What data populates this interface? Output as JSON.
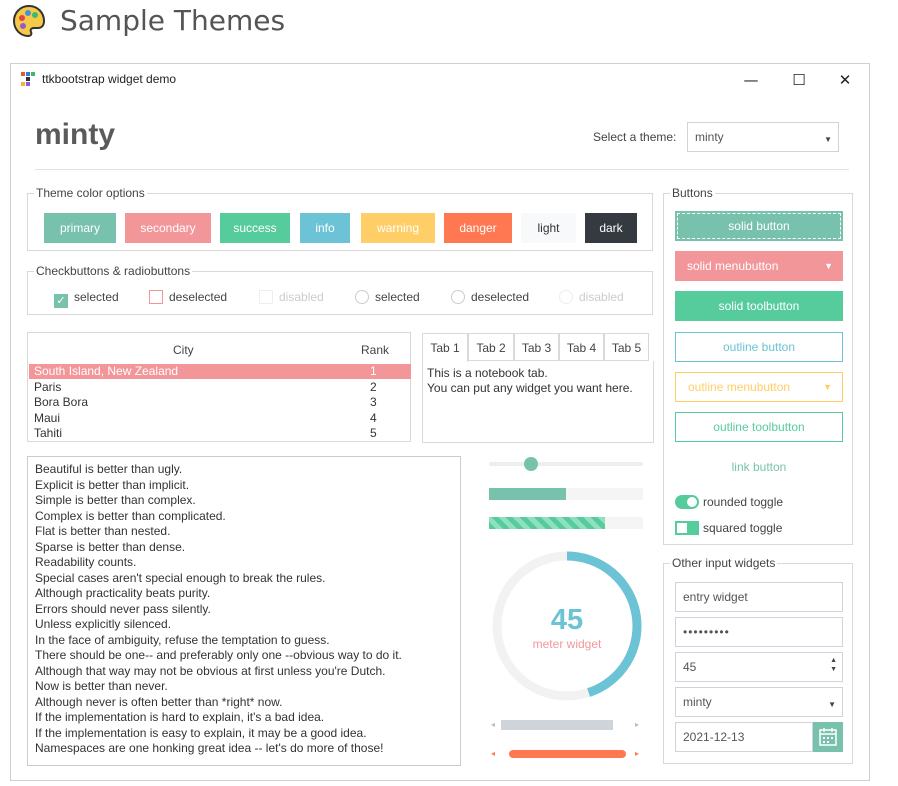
{
  "page": {
    "title": "Sample Themes",
    "icon": "palette-icon"
  },
  "window": {
    "title": "ttkbootstrap widget demo",
    "controls": {
      "minimize": "—",
      "maximize": "☐",
      "close": "✕"
    }
  },
  "header": {
    "theme_name": "minty",
    "select_label": "Select a theme:",
    "select_value": "minty"
  },
  "color_options": {
    "label": "Theme color options",
    "buttons": [
      {
        "label": "primary",
        "color": "#78c2ad"
      },
      {
        "label": "secondary",
        "color": "#f3969a"
      },
      {
        "label": "success",
        "color": "#56cc9d"
      },
      {
        "label": "info",
        "color": "#6cc3d5"
      },
      {
        "label": "warning",
        "color": "#ffce67"
      },
      {
        "label": "danger",
        "color": "#ff7851"
      },
      {
        "label": "light",
        "color": "#f8f9fa"
      },
      {
        "label": "dark",
        "color": "#343a40"
      }
    ]
  },
  "checks": {
    "label": "Checkbuttons & radiobuttons",
    "items": [
      {
        "type": "check",
        "label": "selected",
        "state": "checked"
      },
      {
        "type": "check",
        "label": "deselected",
        "state": "unchecked"
      },
      {
        "type": "check",
        "label": "disabled",
        "state": "disabled"
      },
      {
        "type": "radio",
        "label": "selected",
        "state": "unchecked"
      },
      {
        "type": "radio",
        "label": "deselected",
        "state": "unchecked"
      },
      {
        "type": "radio",
        "label": "disabled",
        "state": "disabled"
      }
    ]
  },
  "tree": {
    "columns": [
      "City",
      "Rank"
    ],
    "rows": [
      {
        "city": "South Island, New Zealand",
        "rank": "1",
        "selected": true
      },
      {
        "city": "Paris",
        "rank": "2"
      },
      {
        "city": "Bora Bora",
        "rank": "3"
      },
      {
        "city": "Maui",
        "rank": "4"
      },
      {
        "city": "Tahiti",
        "rank": "5"
      }
    ]
  },
  "notebook": {
    "tabs": [
      "Tab 1",
      "Tab 2",
      "Tab 3",
      "Tab 4",
      "Tab 5"
    ],
    "active": 0,
    "lines": [
      "This is a notebook tab.",
      "You can put any widget you want here."
    ]
  },
  "text_lines": [
    "Beautiful is better than ugly.",
    "Explicit is better than implicit.",
    "Simple is better than complex.",
    "Complex is better than complicated.",
    "Flat is better than nested.",
    "Sparse is better than dense.",
    "Readability counts.",
    "Special cases aren't special enough to break the rules.",
    "Although practicality beats purity.",
    "Errors should never pass silently.",
    "Unless explicitly silenced.",
    "In the face of ambiguity, refuse the temptation to guess.",
    "There should be one-- and preferably only one --obvious way to do it.",
    "Although that way may not be obvious at first unless you're Dutch.",
    "Now is better than never.",
    "Although never is often better than *right* now.",
    "If the implementation is hard to explain, it's a bad idea.",
    "If the implementation is easy to explain, it may be a good idea.",
    "Namespaces are one honking great idea -- let's do more of those!"
  ],
  "scale": {
    "value": 0.27
  },
  "progress": {
    "value": 0.5
  },
  "striped_progress": {
    "value": 0.75
  },
  "meter": {
    "value": "45",
    "fraction": 0.45,
    "label": "meter widget"
  },
  "hscroll_gray": {
    "start": 0.0,
    "end": 0.86
  },
  "hscroll_red": {
    "start": 0.06,
    "end": 0.96
  },
  "buttons": {
    "label": "Buttons",
    "solid": "solid button",
    "solid_menu": "solid menubutton",
    "solid_tool": "solid toolbutton",
    "outline": "outline button",
    "outline_menu": "outline menubutton",
    "outline_tool": "outline toolbutton",
    "link": "link button",
    "rounded_toggle": "rounded toggle",
    "squared_toggle": "squared toggle"
  },
  "inputs": {
    "label": "Other input widgets",
    "entry": "entry widget",
    "password": "•••••••••",
    "spinbox": "45",
    "combo": "minty",
    "date": "2021-12-13"
  }
}
